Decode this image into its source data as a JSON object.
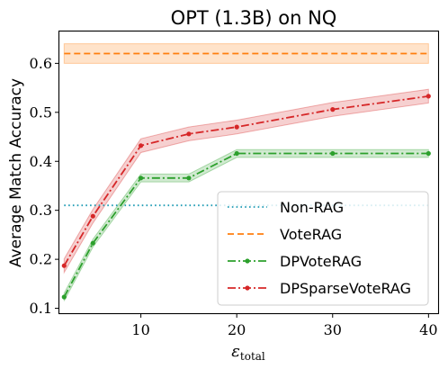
{
  "chart_data": {
    "type": "line",
    "title": "OPT (1.3B) on NQ",
    "xlabel": "ε",
    "xlabel_sub": "total",
    "ylabel": "Average Match Accuracy",
    "xlim": [
      1.5,
      41
    ],
    "ylim": [
      0.09,
      0.665
    ],
    "xticks": [
      10,
      20,
      30,
      40
    ],
    "yticks": [
      0.1,
      0.2,
      0.3,
      0.4,
      0.5,
      0.6
    ],
    "ytick_labels": [
      "0.1",
      "0.2",
      "0.3",
      "0.4",
      "0.5",
      "0.6"
    ],
    "grid": false,
    "legend_position": "lower-right",
    "series": [
      {
        "name": "Non-RAG",
        "style": "dotted",
        "color": "#1f9bb4",
        "markers": false,
        "x": [
          2,
          40
        ],
        "y": [
          0.31,
          0.31
        ]
      },
      {
        "name": "VoteRAG",
        "style": "dashed",
        "color": "#ff7f0e",
        "markers": false,
        "x": [
          2,
          40
        ],
        "y": [
          0.62,
          0.62
        ],
        "band": [
          0.6,
          0.64
        ]
      },
      {
        "name": "DPVoteRAG",
        "style": "dashdot",
        "color": "#2ca02c",
        "markers": true,
        "x": [
          2,
          5,
          10,
          15,
          20,
          30,
          40
        ],
        "y": [
          0.123,
          0.233,
          0.366,
          0.366,
          0.416,
          0.416,
          0.416
        ],
        "band": 0.008
      },
      {
        "name": "DPSparseVoteRAG",
        "style": "dashdot",
        "color": "#d62728",
        "markers": true,
        "x": [
          2,
          5,
          10,
          15,
          20,
          30,
          40
        ],
        "y": [
          0.187,
          0.288,
          0.432,
          0.456,
          0.47,
          0.506,
          0.533
        ],
        "band": 0.014
      }
    ]
  }
}
